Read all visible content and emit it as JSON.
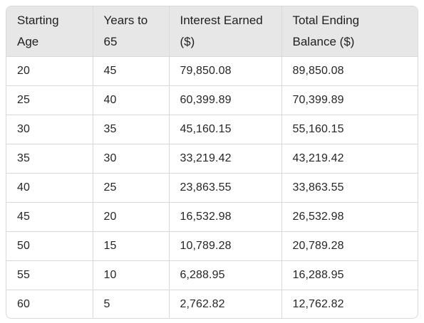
{
  "table": {
    "headers": [
      "Starting Age",
      "Years to 65",
      "Interest Earned ($)",
      "Total Ending Balance ($)"
    ],
    "header_lines": [
      [
        "Starting",
        "Age"
      ],
      [
        "Years to",
        "65"
      ],
      [
        "Interest Earned",
        "($)"
      ],
      [
        "Total Ending",
        "Balance ($)"
      ]
    ],
    "rows": [
      [
        "20",
        "45",
        "79,850.08",
        "89,850.08"
      ],
      [
        "25",
        "40",
        "60,399.89",
        "70,399.89"
      ],
      [
        "30",
        "35",
        "45,160.15",
        "55,160.15"
      ],
      [
        "35",
        "30",
        "33,219.42",
        "43,219.42"
      ],
      [
        "40",
        "25",
        "23,863.55",
        "33,863.55"
      ],
      [
        "45",
        "20",
        "16,532.98",
        "26,532.98"
      ],
      [
        "50",
        "15",
        "10,789.28",
        "20,789.28"
      ],
      [
        "55",
        "10",
        "6,288.95",
        "16,288.95"
      ],
      [
        "60",
        "5",
        "2,762.82",
        "12,762.82"
      ]
    ]
  },
  "colors": {
    "header_bg": "#e7e7e7",
    "border": "#d9d9d9",
    "text": "#1f1f1f"
  }
}
